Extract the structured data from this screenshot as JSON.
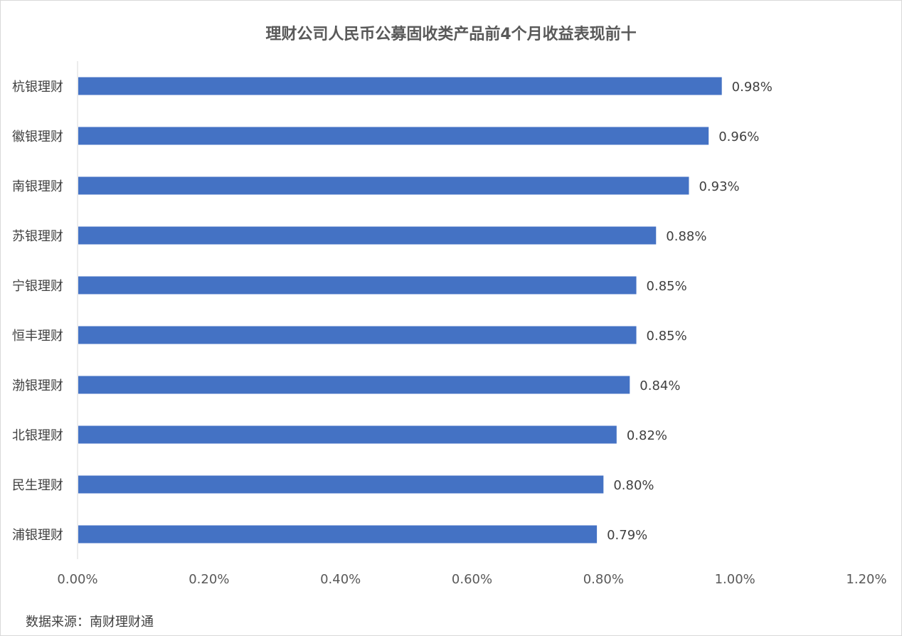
{
  "chart_data": {
    "type": "bar",
    "orientation": "horizontal",
    "title": "理财公司人民币公募固收类产品前4个月收益表现前十",
    "categories": [
      "杭银理财",
      "徽银理财",
      "南银理财",
      "苏银理财",
      "宁银理财",
      "恒丰理财",
      "渤银理财",
      "北银理财",
      "民生理财",
      "浦银理财"
    ],
    "values": [
      0.98,
      0.96,
      0.93,
      0.88,
      0.85,
      0.85,
      0.84,
      0.82,
      0.8,
      0.79
    ],
    "value_labels": [
      "0.98%",
      "0.96%",
      "0.93%",
      "0.88%",
      "0.85%",
      "0.85%",
      "0.84%",
      "0.82%",
      "0.80%",
      "0.79%"
    ],
    "xlim": [
      0,
      1.2
    ],
    "x_ticks": [
      "0.00%",
      "0.20%",
      "0.40%",
      "0.60%",
      "0.80%",
      "1.00%",
      "1.20%"
    ],
    "xlabel": "",
    "ylabel": "",
    "grid": false,
    "bar_color": "#4472C4"
  },
  "source_text": "数据来源：南财理财通"
}
